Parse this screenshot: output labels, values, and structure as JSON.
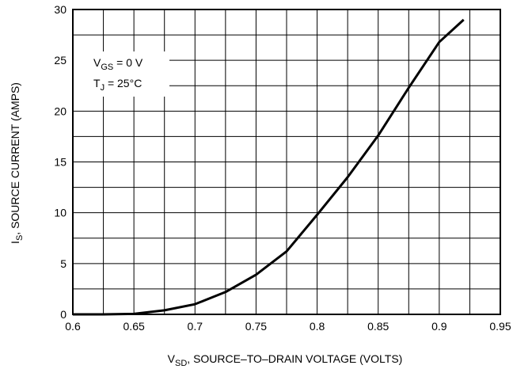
{
  "chart_data": {
    "type": "line",
    "xlabel": {
      "main": "V",
      "sub": "SD",
      "rest": ", SOURCE–TO–DRAIN VOLTAGE (VOLTS)"
    },
    "ylabel": {
      "main": "I",
      "sub": "S",
      "rest": ", SOURCE CURRENT (AMPS)"
    },
    "annotations": [
      {
        "main": "V",
        "sub": "GS",
        "rest": " = 0 V"
      },
      {
        "main": "T",
        "sub": "J",
        "rest": " = 25°C"
      }
    ],
    "x": [
      0.6,
      0.625,
      0.65,
      0.675,
      0.7,
      0.725,
      0.75,
      0.775,
      0.8,
      0.825,
      0.85,
      0.875,
      0.9,
      0.92
    ],
    "series": [
      {
        "color": "#000000",
        "values": [
          0,
          0,
          0.05,
          0.4,
          1.0,
          2.2,
          3.9,
          6.2,
          9.8,
          13.5,
          17.6,
          22.3,
          26.8,
          29
        ]
      }
    ],
    "xlim": [
      0.6,
      0.95
    ],
    "ylim": [
      0,
      30
    ],
    "xticks": [
      0.6,
      0.65,
      0.7,
      0.75,
      0.8,
      0.85,
      0.9,
      0.95
    ],
    "yticks": [
      0,
      5,
      10,
      15,
      20,
      25,
      30
    ],
    "xgrid": [
      0.625,
      0.675,
      0.725,
      0.775,
      0.825,
      0.875,
      0.925
    ],
    "ygrid": [
      2.5,
      7.5,
      12.5,
      17.5,
      22.5,
      27.5
    ],
    "grid": true
  }
}
